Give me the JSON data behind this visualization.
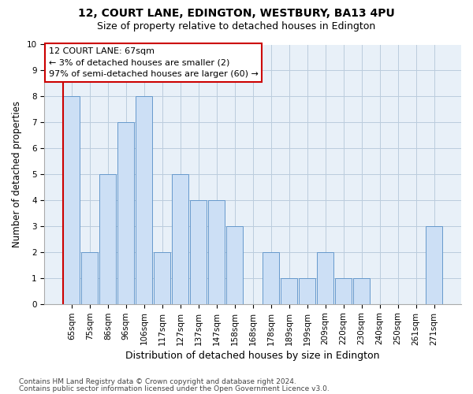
{
  "title1": "12, COURT LANE, EDINGTON, WESTBURY, BA13 4PU",
  "title2": "Size of property relative to detached houses in Edington",
  "xlabel": "Distribution of detached houses by size in Edington",
  "ylabel": "Number of detached properties",
  "categories": [
    "65sqm",
    "75sqm",
    "86sqm",
    "96sqm",
    "106sqm",
    "117sqm",
    "127sqm",
    "137sqm",
    "147sqm",
    "158sqm",
    "168sqm",
    "178sqm",
    "189sqm",
    "199sqm",
    "209sqm",
    "220sqm",
    "230sqm",
    "240sqm",
    "250sqm",
    "261sqm",
    "271sqm"
  ],
  "values": [
    8,
    2,
    5,
    7,
    8,
    2,
    5,
    4,
    4,
    3,
    0,
    2,
    1,
    1,
    2,
    1,
    1,
    0,
    0,
    0,
    3
  ],
  "bar_color": "#ccdff5",
  "bar_edge_color": "#6699cc",
  "annotation_box_bg": "#ffffff",
  "annotation_border_color": "#cc0000",
  "annotation_text1": "12 COURT LANE: 67sqm",
  "annotation_text2": "← 3% of detached houses are smaller (2)",
  "annotation_text3": "97% of semi-detached houses are larger (60) →",
  "red_line_color": "#cc0000",
  "footer1": "Contains HM Land Registry data © Crown copyright and database right 2024.",
  "footer2": "Contains public sector information licensed under the Open Government Licence v3.0.",
  "ylim": [
    0,
    10
  ],
  "yticks": [
    0,
    1,
    2,
    3,
    4,
    5,
    6,
    7,
    8,
    9,
    10
  ],
  "grid_color": "#bbccdd",
  "fig_bg_color": "#ffffff",
  "plot_bg_color": "#e8f0f8",
  "title1_fontsize": 10,
  "title2_fontsize": 9,
  "xlabel_fontsize": 9,
  "ylabel_fontsize": 8.5,
  "tick_fontsize": 7.5,
  "annotation_fontsize": 8,
  "footer_fontsize": 6.5
}
